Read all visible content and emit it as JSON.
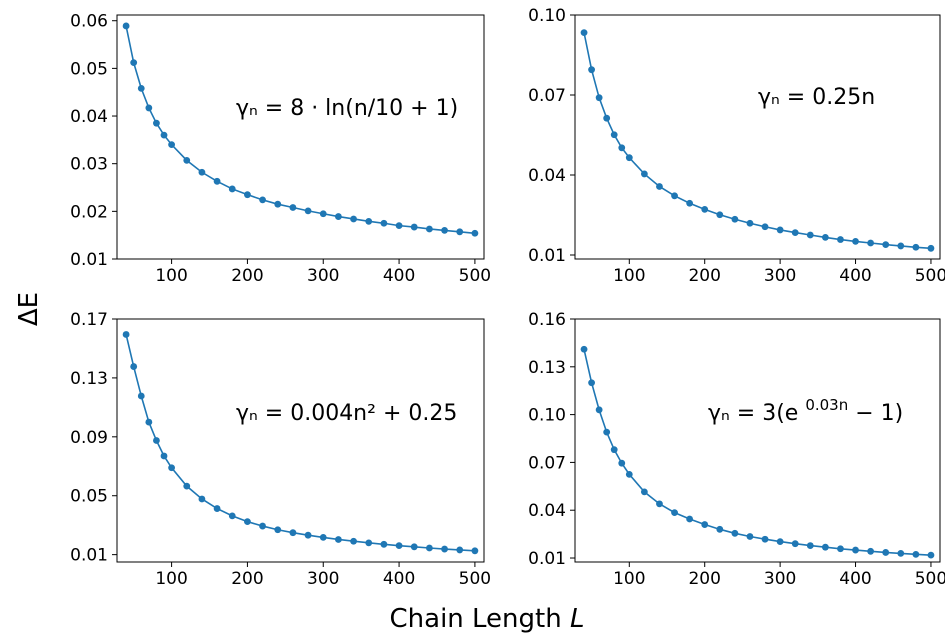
{
  "figure": {
    "xlabel_prefix": "Chain Length ",
    "xlabel_var": "L",
    "ylabel": "ΔE",
    "series_color": "#1f77b4"
  },
  "chart_data": [
    {
      "type": "line",
      "annotation": "γₙ = 8 · ln(n/10 + 1)",
      "x": [
        40,
        50,
        60,
        70,
        80,
        90,
        100,
        120,
        140,
        160,
        180,
        200,
        220,
        240,
        260,
        280,
        300,
        320,
        340,
        360,
        380,
        400,
        420,
        440,
        460,
        480,
        500
      ],
      "y": [
        0.0589,
        0.0512,
        0.0458,
        0.0417,
        0.0385,
        0.036,
        0.034,
        0.0307,
        0.0282,
        0.0263,
        0.0247,
        0.0235,
        0.0224,
        0.0215,
        0.0208,
        0.0201,
        0.0195,
        0.0189,
        0.0184,
        0.0179,
        0.0175,
        0.017,
        0.0167,
        0.0163,
        0.016,
        0.0157,
        0.0154
      ],
      "xlim": [
        28,
        512
      ],
      "ylim": [
        0.01,
        0.0612
      ],
      "xticks": [
        100,
        200,
        300,
        400,
        500
      ],
      "yticks": [
        0.01,
        0.02,
        0.03,
        0.04,
        0.05,
        0.06
      ],
      "xtick_labels": [
        "100",
        "200",
        "300",
        "400",
        "500"
      ],
      "ytick_labels": [
        "0.01",
        "0.02",
        "0.03",
        "0.04",
        "0.05",
        "0.06"
      ]
    },
    {
      "type": "line",
      "annotation": "γₙ = 0.25n",
      "x": [
        40,
        50,
        60,
        70,
        80,
        90,
        100,
        120,
        140,
        160,
        180,
        200,
        220,
        240,
        260,
        280,
        300,
        320,
        340,
        360,
        380,
        400,
        420,
        440,
        460,
        480,
        500
      ],
      "y": [
        0.0934,
        0.0795,
        0.069,
        0.0613,
        0.0551,
        0.0502,
        0.0465,
        0.0404,
        0.0357,
        0.0322,
        0.0294,
        0.0271,
        0.0251,
        0.0234,
        0.0219,
        0.0206,
        0.0194,
        0.0184,
        0.0175,
        0.0166,
        0.0158,
        0.0151,
        0.0145,
        0.0139,
        0.0134,
        0.0129,
        0.0125
      ],
      "xlim": [
        28,
        512
      ],
      "ylim": [
        0.0085,
        0.1
      ],
      "xticks": [
        100,
        200,
        300,
        400,
        500
      ],
      "yticks": [
        0.01,
        0.04,
        0.07,
        0.1
      ],
      "xtick_labels": [
        "100",
        "200",
        "300",
        "400",
        "500"
      ],
      "ytick_labels": [
        "0.01",
        "0.04",
        "0.07",
        "0.10"
      ]
    },
    {
      "type": "line",
      "annotation": "γₙ = 0.004n² + 0.25",
      "x": [
        40,
        50,
        60,
        70,
        80,
        90,
        100,
        120,
        140,
        160,
        180,
        200,
        220,
        240,
        260,
        280,
        300,
        320,
        340,
        360,
        380,
        400,
        420,
        440,
        460,
        480,
        500
      ],
      "y": [
        0.1595,
        0.1377,
        0.1177,
        0.1,
        0.0875,
        0.077,
        0.069,
        0.0565,
        0.0478,
        0.0413,
        0.0363,
        0.0324,
        0.0294,
        0.0269,
        0.0249,
        0.0232,
        0.0217,
        0.0203,
        0.0191,
        0.018,
        0.017,
        0.0161,
        0.0153,
        0.0145,
        0.0138,
        0.0132,
        0.0126
      ],
      "xlim": [
        28,
        512
      ],
      "ylim": [
        0.005,
        0.17
      ],
      "xticks": [
        100,
        200,
        300,
        400,
        500
      ],
      "yticks": [
        0.01,
        0.05,
        0.09,
        0.13,
        0.17
      ],
      "xtick_labels": [
        "100",
        "200",
        "300",
        "400",
        "500"
      ],
      "ytick_labels": [
        "0.01",
        "0.05",
        "0.09",
        "0.13",
        "0.17"
      ]
    },
    {
      "type": "line",
      "annotation_main": "γₙ = 3(e",
      "annotation_sup": "0.03n",
      "annotation_tail": " − 1)",
      "x": [
        40,
        50,
        60,
        70,
        80,
        90,
        100,
        120,
        140,
        160,
        180,
        200,
        220,
        240,
        260,
        280,
        300,
        320,
        340,
        360,
        380,
        400,
        420,
        440,
        460,
        480,
        500
      ],
      "y": [
        0.141,
        0.12,
        0.103,
        0.089,
        0.078,
        0.0695,
        0.0625,
        0.0515,
        0.044,
        0.0385,
        0.0345,
        0.031,
        0.028,
        0.0255,
        0.0235,
        0.0218,
        0.0203,
        0.019,
        0.0178,
        0.0168,
        0.0158,
        0.015,
        0.0142,
        0.0135,
        0.0129,
        0.0123,
        0.0118
      ],
      "xlim": [
        28,
        512
      ],
      "ylim": [
        0.0075,
        0.16
      ],
      "xticks": [
        100,
        200,
        300,
        400,
        500
      ],
      "yticks": [
        0.01,
        0.04,
        0.07,
        0.1,
        0.13,
        0.16
      ],
      "xtick_labels": [
        "100",
        "200",
        "300",
        "400",
        "500"
      ],
      "ytick_labels": [
        "0.01",
        "0.04",
        "0.07",
        "0.10",
        "0.13",
        "0.16"
      ]
    }
  ]
}
